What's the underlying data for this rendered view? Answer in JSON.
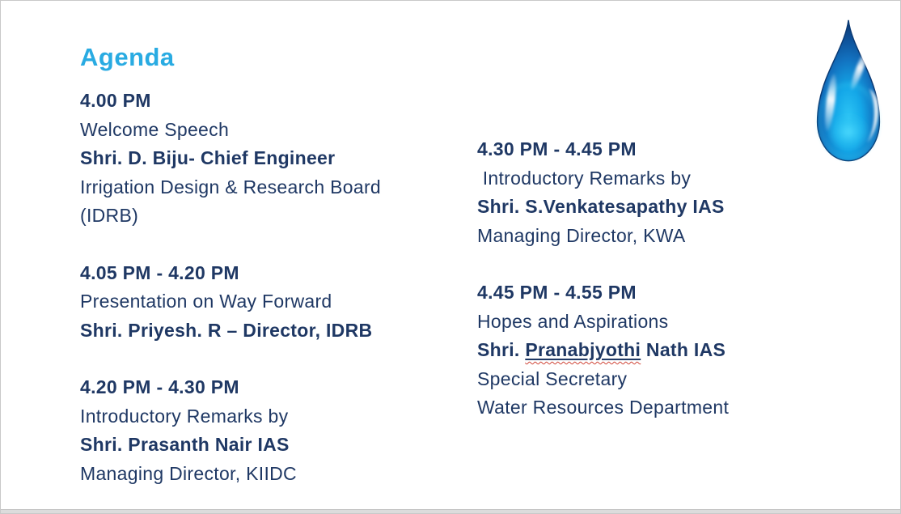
{
  "page": {
    "title": "Agenda",
    "accent_color": "#29ABE2",
    "text_color": "#1F3864",
    "squiggle_color": "#CF4436"
  },
  "agenda": {
    "left_column": [
      {
        "time": "4.00 PM",
        "lines": [
          {
            "text": "Welcome Speech",
            "bold": false
          },
          {
            "text": "Shri. D. Biju- Chief Engineer",
            "bold": true
          },
          {
            "text": "Irrigation Design & Research Board",
            "bold": false
          },
          {
            "text": "(IDRB)",
            "bold": false
          }
        ]
      },
      {
        "time": "4.05 PM - 4.20 PM",
        "lines": [
          {
            "text": "Presentation on Way Forward",
            "bold": false
          },
          {
            "text": "Shri. Priyesh. R – Director, IDRB",
            "bold": true
          }
        ]
      },
      {
        "time": "4.20 PM - 4.30 PM",
        "lines": [
          {
            "text": "Introductory Remarks by",
            "bold": false
          },
          {
            "text": "Shri. Prasanth Nair IAS",
            "bold": true
          },
          {
            "text": "Managing Director, KIIDC",
            "bold": false
          }
        ]
      }
    ],
    "right_column": [
      {
        "time": "4.30 PM - 4.45 PM",
        "lines": [
          {
            "text": " Introductory Remarks by",
            "bold": false
          },
          {
            "text": "Shri. S.Venkatesapathy IAS",
            "bold": true
          },
          {
            "text": "Managing Director, KWA",
            "bold": false
          }
        ]
      },
      {
        "time": "4.45 PM - 4.55 PM",
        "lines": [
          {
            "text": "Hopes and Aspirations",
            "bold": false
          },
          {
            "bold": true,
            "parts": [
              {
                "text": "Shri. "
              },
              {
                "text": "Pranabjyothi",
                "underline": true,
                "squiggle": true
              },
              {
                "text": " Nath IAS"
              }
            ]
          },
          {
            "text": "Special Secretary",
            "bold": false
          },
          {
            "text": "Water Resources Department",
            "bold": false
          }
        ]
      }
    ]
  },
  "graphics": {
    "water_drop_icon": "glossy blue water droplet",
    "drop_colors": {
      "rim": "#0B3A74",
      "body_dark": "#0E4E95",
      "body_mid": "#1272C0",
      "body_bright": "#14A7E8",
      "glow": "#4FDCFF",
      "highlight": "#FFFFFF"
    }
  }
}
